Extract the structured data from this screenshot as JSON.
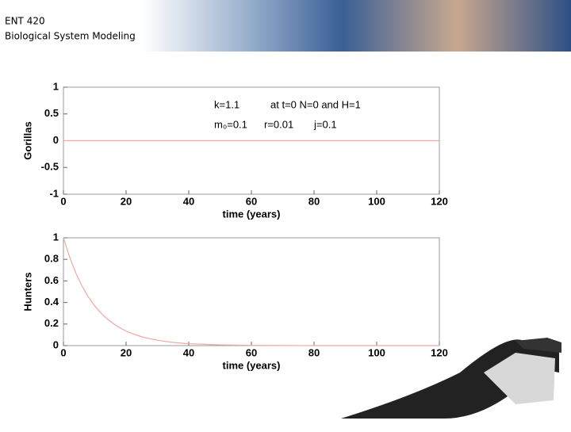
{
  "header": {
    "course": "ENT 420",
    "subtitle": "Biological System Modeling"
  },
  "chart_data": [
    {
      "type": "line",
      "ylabel": "Gorillas",
      "xlabel": "time (years)",
      "annotations": [
        "k=1.1",
        "at t=0 N=0 and H=1",
        "m₀=0.1",
        "r=0.01",
        "j=0.1"
      ],
      "x": [
        0,
        120
      ],
      "values": [
        0,
        0
      ],
      "color": "#f0a8a0",
      "xlim": [
        0,
        120
      ],
      "xticks": [
        0,
        20,
        40,
        60,
        80,
        100,
        120
      ],
      "ylim": [
        -1,
        1
      ],
      "yticks": [
        -1,
        -0.5,
        0,
        0.5,
        1
      ]
    },
    {
      "type": "line",
      "ylabel": "Hunters",
      "xlabel": "time (years)",
      "x": [
        0,
        2,
        4,
        6,
        8,
        10,
        12,
        14,
        16,
        18,
        20,
        22,
        24,
        26,
        28,
        30,
        32,
        34,
        36,
        38,
        40,
        50,
        60,
        70,
        80,
        90,
        100,
        110,
        120
      ],
      "values": [
        1,
        0.819,
        0.67,
        0.549,
        0.449,
        0.368,
        0.301,
        0.247,
        0.202,
        0.165,
        0.135,
        0.111,
        0.091,
        0.074,
        0.061,
        0.05,
        0.041,
        0.033,
        0.027,
        0.022,
        0.018,
        0.007,
        0.002,
        0.001,
        0,
        0,
        0,
        0,
        0
      ],
      "color": "#f0a8a0",
      "xlim": [
        0,
        120
      ],
      "xticks": [
        0,
        20,
        40,
        60,
        80,
        100,
        120
      ],
      "ylim": [
        0,
        1
      ],
      "yticks": [
        0,
        0.2,
        0.4,
        0.6,
        0.8,
        1
      ]
    }
  ]
}
